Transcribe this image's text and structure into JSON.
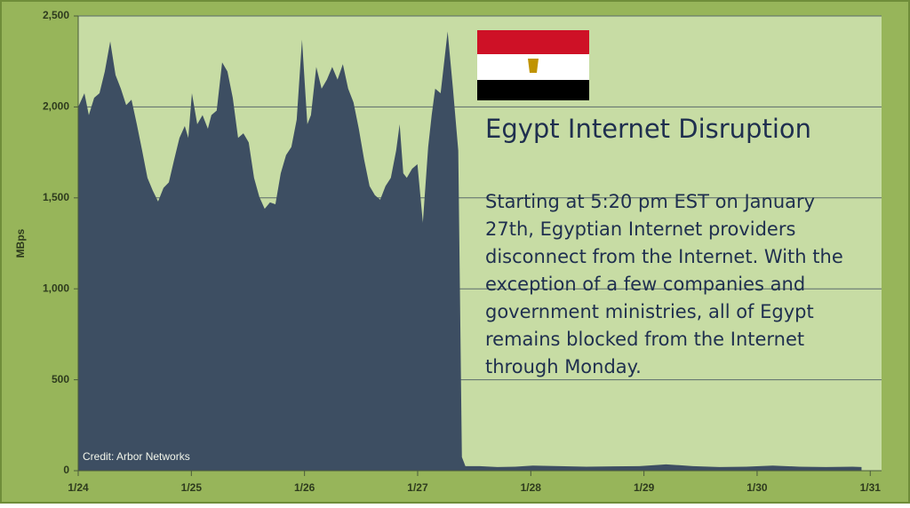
{
  "chart_data": {
    "type": "area",
    "title": "Egypt Internet Disruption",
    "annotation": "Starting at 5:20 pm EST on January 27th, Egyptian Internet providers disconnect from the Internet. With the exception of a few companies and government ministries, all of Egypt remains blocked from the Internet through Monday.",
    "credit": "Credit: Arbor Networks",
    "y_label": "MBps",
    "color": "#3d4e62",
    "grid": true,
    "x": [
      24.0,
      24.055,
      24.094,
      24.141,
      24.188,
      24.235,
      24.283,
      24.33,
      24.377,
      24.424,
      24.471,
      24.518,
      24.565,
      24.612,
      24.659,
      24.706,
      24.754,
      24.801,
      24.848,
      24.895,
      24.942,
      24.973,
      25.005,
      25.052,
      25.099,
      25.146,
      25.177,
      25.224,
      25.272,
      25.319,
      25.366,
      25.413,
      25.46,
      25.507,
      25.554,
      25.601,
      25.648,
      25.695,
      25.743,
      25.79,
      25.837,
      25.884,
      25.931,
      25.978,
      26.025,
      26.057,
      26.104,
      26.151,
      26.198,
      26.245,
      26.292,
      26.339,
      26.386,
      26.433,
      26.48,
      26.527,
      26.575,
      26.622,
      26.669,
      26.716,
      26.763,
      26.81,
      26.841,
      26.873,
      26.904,
      26.951,
      26.998,
      27.046,
      27.093,
      27.124,
      27.155,
      27.203,
      27.265,
      27.312,
      27.359,
      27.391,
      27.422,
      27.548,
      27.705,
      27.862,
      28.019,
      28.254,
      28.49,
      28.725,
      28.96,
      29.196,
      29.432,
      29.667,
      29.903,
      30.138,
      30.374,
      30.609,
      30.845,
      30.923
    ],
    "values": [
      2000,
      2075,
      1955,
      2050,
      2075,
      2195,
      2360,
      2175,
      2100,
      2010,
      2040,
      1905,
      1760,
      1610,
      1540,
      1480,
      1555,
      1585,
      1710,
      1830,
      1895,
      1830,
      2075,
      1905,
      1955,
      1880,
      1955,
      1980,
      2245,
      2195,
      2050,
      1830,
      1855,
      1805,
      1610,
      1505,
      1440,
      1475,
      1465,
      1635,
      1735,
      1780,
      1930,
      2370,
      1905,
      1955,
      2220,
      2100,
      2150,
      2220,
      2150,
      2235,
      2100,
      2025,
      1880,
      1710,
      1565,
      1515,
      1490,
      1565,
      1610,
      1760,
      1905,
      1635,
      1610,
      1660,
      1685,
      1365,
      1780,
      1955,
      2100,
      2075,
      2415,
      2100,
      1760,
      75,
      25,
      25,
      20,
      22,
      28,
      25,
      22,
      24,
      25,
      35,
      25,
      20,
      22,
      28,
      22,
      20,
      22,
      20
    ],
    "xlim": [
      24,
      31.1
    ],
    "xticks": [
      {
        "value": 24,
        "label": "1/24"
      },
      {
        "value": 25,
        "label": "1/25"
      },
      {
        "value": 26,
        "label": "1/26"
      },
      {
        "value": 27,
        "label": "1/27"
      },
      {
        "value": 28,
        "label": "1/28"
      },
      {
        "value": 29,
        "label": "1/29"
      },
      {
        "value": 30,
        "label": "1/30"
      },
      {
        "value": 31,
        "label": "1/31"
      }
    ],
    "ylim": [
      0,
      2500
    ],
    "yticks": [
      0,
      500,
      {
        "value": 1000,
        "label": "1,000"
      },
      {
        "value": 1500,
        "label": "1,500"
      },
      {
        "value": 2000,
        "label": "2,000"
      },
      {
        "value": 2500,
        "label": "2,500"
      }
    ]
  }
}
